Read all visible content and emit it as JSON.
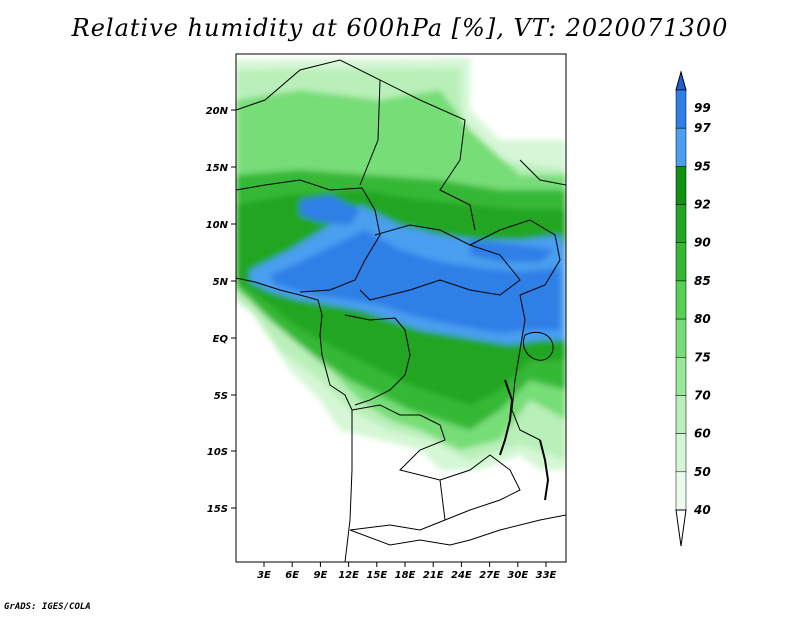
{
  "title": "Relative humidity at 600hPa [%], VT: 2020071300",
  "credit": "GrADS: IGES/COLA",
  "map": {
    "lat_labels": [
      "20N",
      "15N",
      "10N",
      "5N",
      "EQ",
      "5S",
      "10S",
      "15S"
    ],
    "lon_labels": [
      "3E",
      "6E",
      "9E",
      "12E",
      "15E",
      "18E",
      "21E",
      "24E",
      "27E",
      "30E",
      "33E"
    ]
  },
  "colorbar": {
    "levels": [
      "99",
      "97",
      "95",
      "92",
      "90",
      "85",
      "80",
      "75",
      "70",
      "60",
      "50",
      "40"
    ],
    "colors": [
      "#1f5fd6",
      "#2f7fe6",
      "#4a9ff0",
      "#138f13",
      "#22a622",
      "#36b836",
      "#55d055",
      "#77dd77",
      "#99e699",
      "#b9efb9",
      "#d5f7d5",
      "#ecfcec"
    ]
  }
}
